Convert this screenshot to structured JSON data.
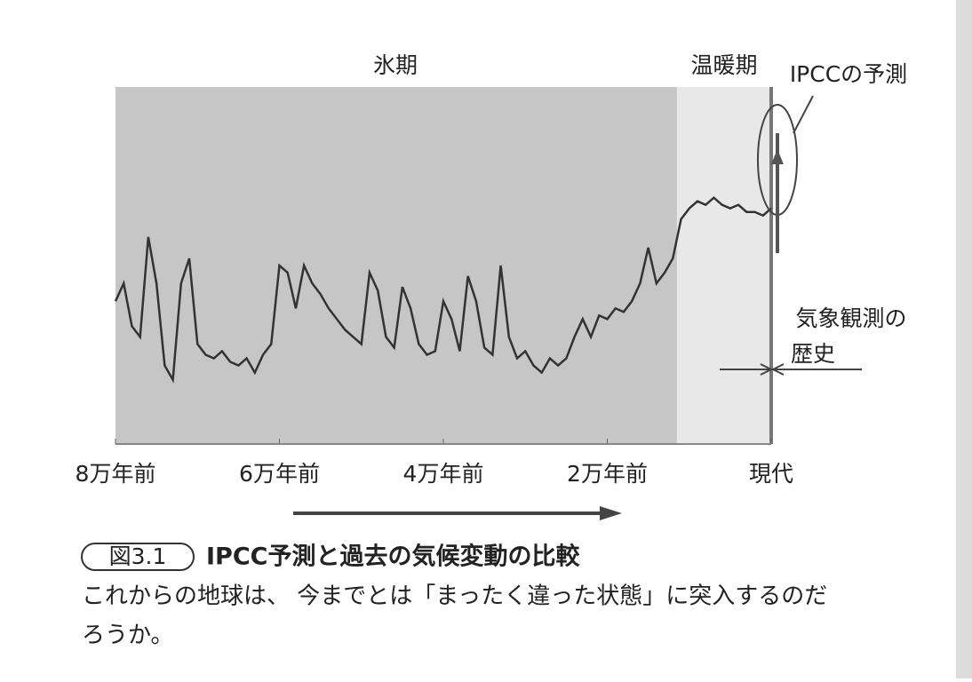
{
  "chart_data": {
    "type": "line",
    "annotations": {
      "ipcc": "IPCCの予測",
      "observation": [
        "気象観測の",
        "歴史"
      ]
    },
    "regions": [
      {
        "label": "氷期",
        "from": -80000,
        "to": -11500
      },
      {
        "label": "温暖期",
        "from": -11500,
        "to": 0
      }
    ],
    "x": [
      -80000,
      -79000,
      -78000,
      -77000,
      -76000,
      -75000,
      -74000,
      -73000,
      -72000,
      -71000,
      -70000,
      -69000,
      -68000,
      -67000,
      -66000,
      -65000,
      -64000,
      -63000,
      -62000,
      -61000,
      -60000,
      -59000,
      -58000,
      -57000,
      -56000,
      -55000,
      -54000,
      -53000,
      -52000,
      -51000,
      -50000,
      -49000,
      -48000,
      -47000,
      -46000,
      -45000,
      -44000,
      -43000,
      -42000,
      -41000,
      -40000,
      -39000,
      -38000,
      -37000,
      -36000,
      -35000,
      -34000,
      -33000,
      -32000,
      -31000,
      -30000,
      -29000,
      -28000,
      -27000,
      -26000,
      -25000,
      -24000,
      -23000,
      -22000,
      -21000,
      -20000,
      -19000,
      -18000,
      -17000,
      -16000,
      -15000,
      -14000,
      -13000,
      -12000,
      -11000,
      -10000,
      -9000,
      -8000,
      -7000,
      -6000,
      -5000,
      -4000,
      -3000,
      -2000,
      -1000,
      0
    ],
    "values": [
      40,
      45,
      33,
      30,
      58,
      45,
      22,
      18,
      45,
      52,
      28,
      25,
      24,
      26,
      23,
      22,
      24,
      20,
      25,
      28,
      50,
      48,
      38,
      50,
      45,
      42,
      38,
      35,
      32,
      30,
      28,
      48,
      43,
      30,
      27,
      44,
      38,
      28,
      25,
      26,
      40,
      35,
      26,
      47,
      40,
      27,
      25,
      50,
      30,
      24,
      26,
      22,
      20,
      24,
      22,
      24,
      30,
      35,
      30,
      36,
      35,
      38,
      37,
      40,
      45,
      55,
      45,
      48,
      52,
      63,
      66,
      68,
      67,
      69,
      67,
      66,
      67,
      65,
      65,
      64,
      66
    ],
    "color": "#333333",
    "xlim": [
      -80000,
      0
    ],
    "ylim": [
      0,
      100
    ],
    "xticks": [
      {
        "value": -80000,
        "label": "8万年前"
      },
      {
        "value": -60000,
        "label": "6万年前"
      },
      {
        "value": -40000,
        "label": "4万年前"
      },
      {
        "value": -20000,
        "label": "2万年前"
      },
      {
        "value": 0,
        "label": "現代"
      }
    ]
  },
  "caption": {
    "number": "図3.1",
    "title": "IPCC予測と過去の気候変動の比較",
    "body": [
      "これからの地球は、 今までとは「まったく違った状態」に突入するのだ",
      "ろうか。"
    ]
  }
}
